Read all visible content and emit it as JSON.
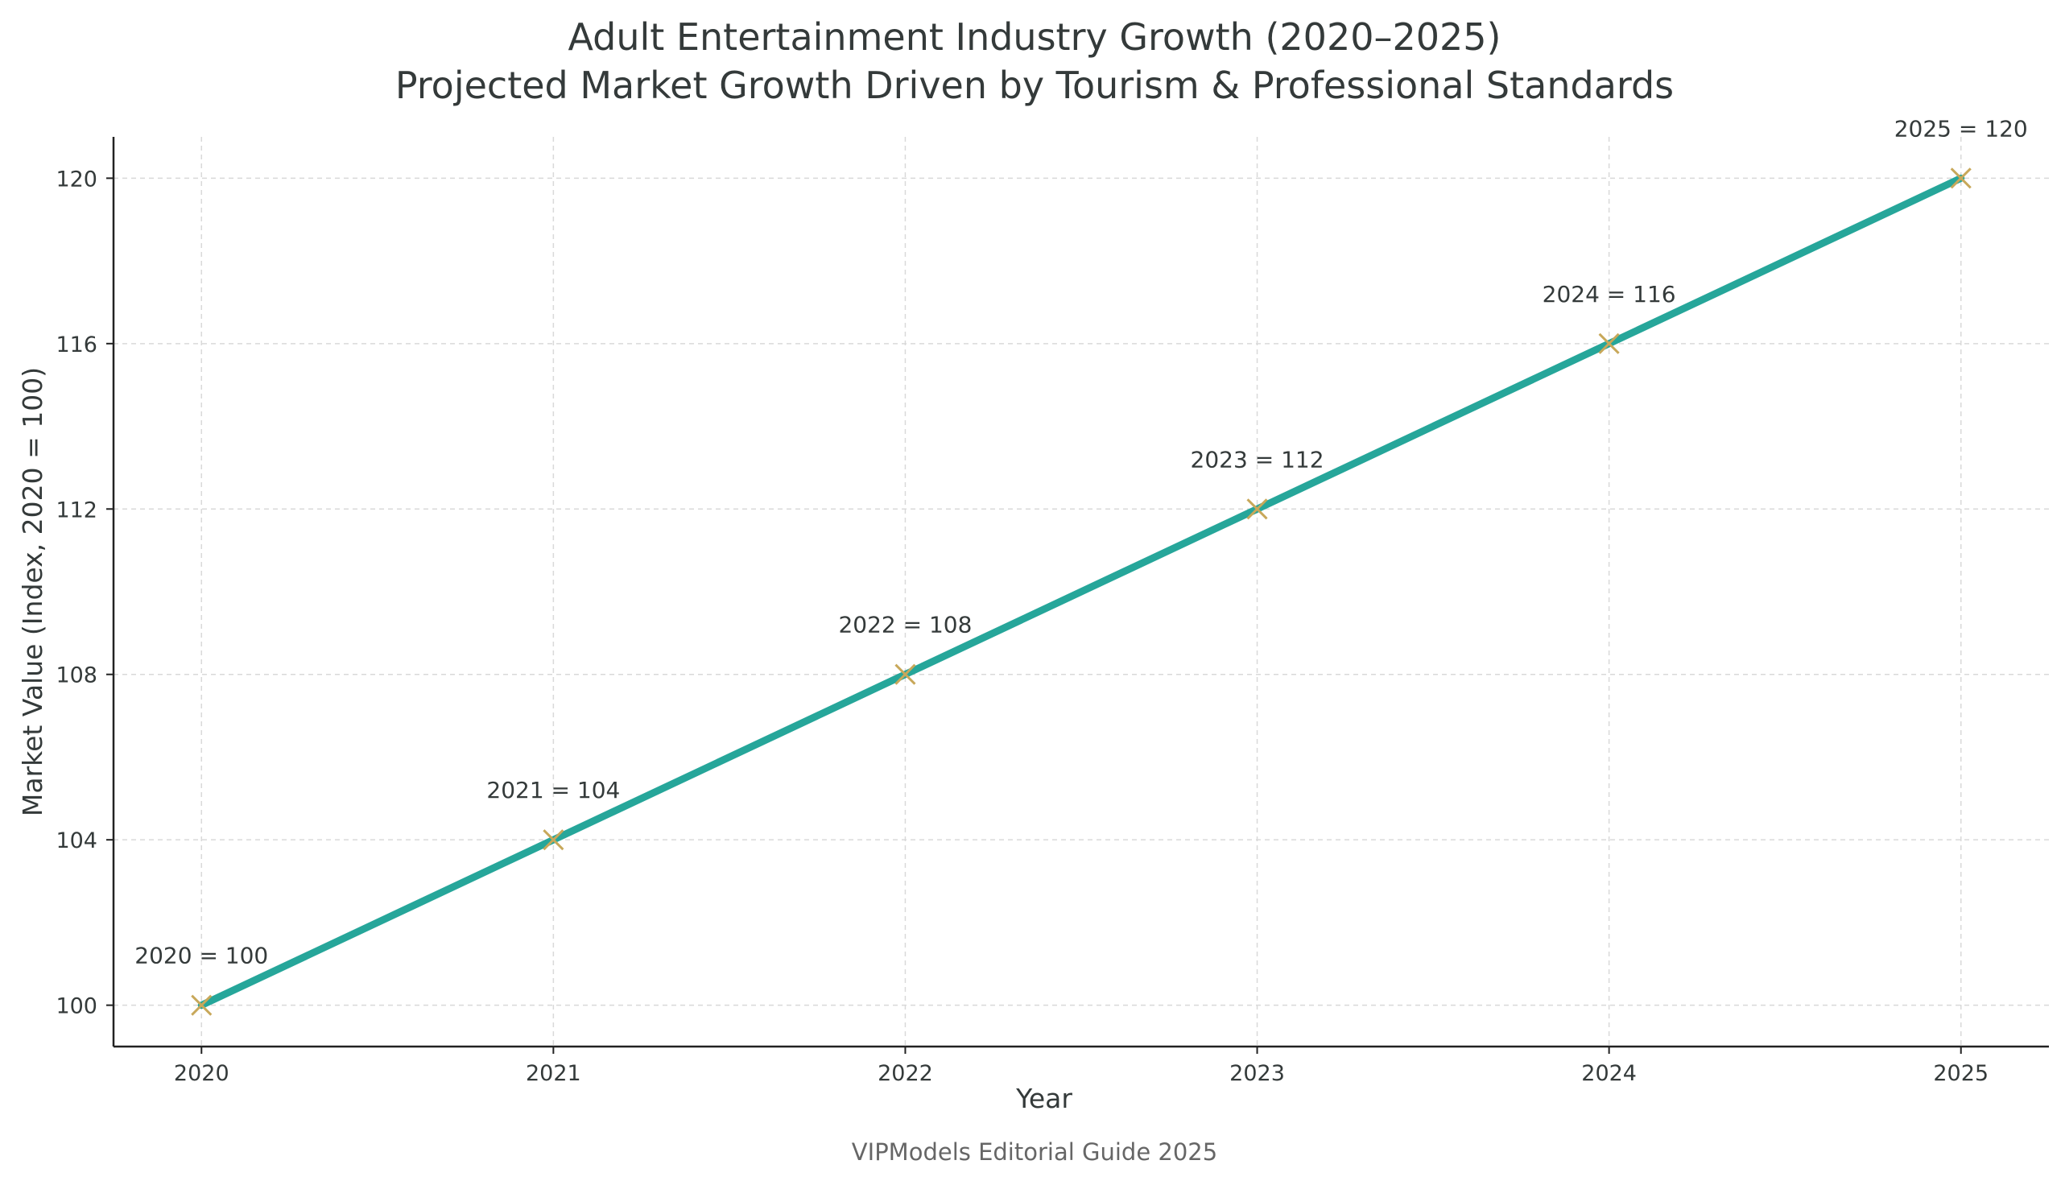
{
  "chart_data": {
    "type": "line",
    "title": "Adult Entertainment Industry Growth (2020–2025)",
    "subtitle": "Projected Market Growth Driven by Tourism & Professional Standards",
    "xlabel": "Year",
    "ylabel": "Market Value (Index, 2020 = 100)",
    "x": [
      2020,
      2021,
      2022,
      2023,
      2024,
      2025
    ],
    "series": [
      {
        "values": [
          100,
          104,
          108,
          112,
          116,
          120
        ]
      }
    ],
    "annotations": [
      "2020 = 100",
      "2021 = 104",
      "2022 = 108",
      "2023 = 112",
      "2024 = 116",
      "2025 = 120"
    ],
    "x_ticks": [
      "2020",
      "2021",
      "2022",
      "2023",
      "2024",
      "2025"
    ],
    "y_ticks": [
      100,
      104,
      108,
      112,
      116,
      120
    ],
    "xlim": [
      2019.75,
      2025.25
    ],
    "ylim": [
      99,
      121
    ],
    "grid": true,
    "line_color": "#26a69a",
    "marker_color": "#c8a85a",
    "marker": "x",
    "footer": "VIPModels Editorial Guide 2025"
  }
}
